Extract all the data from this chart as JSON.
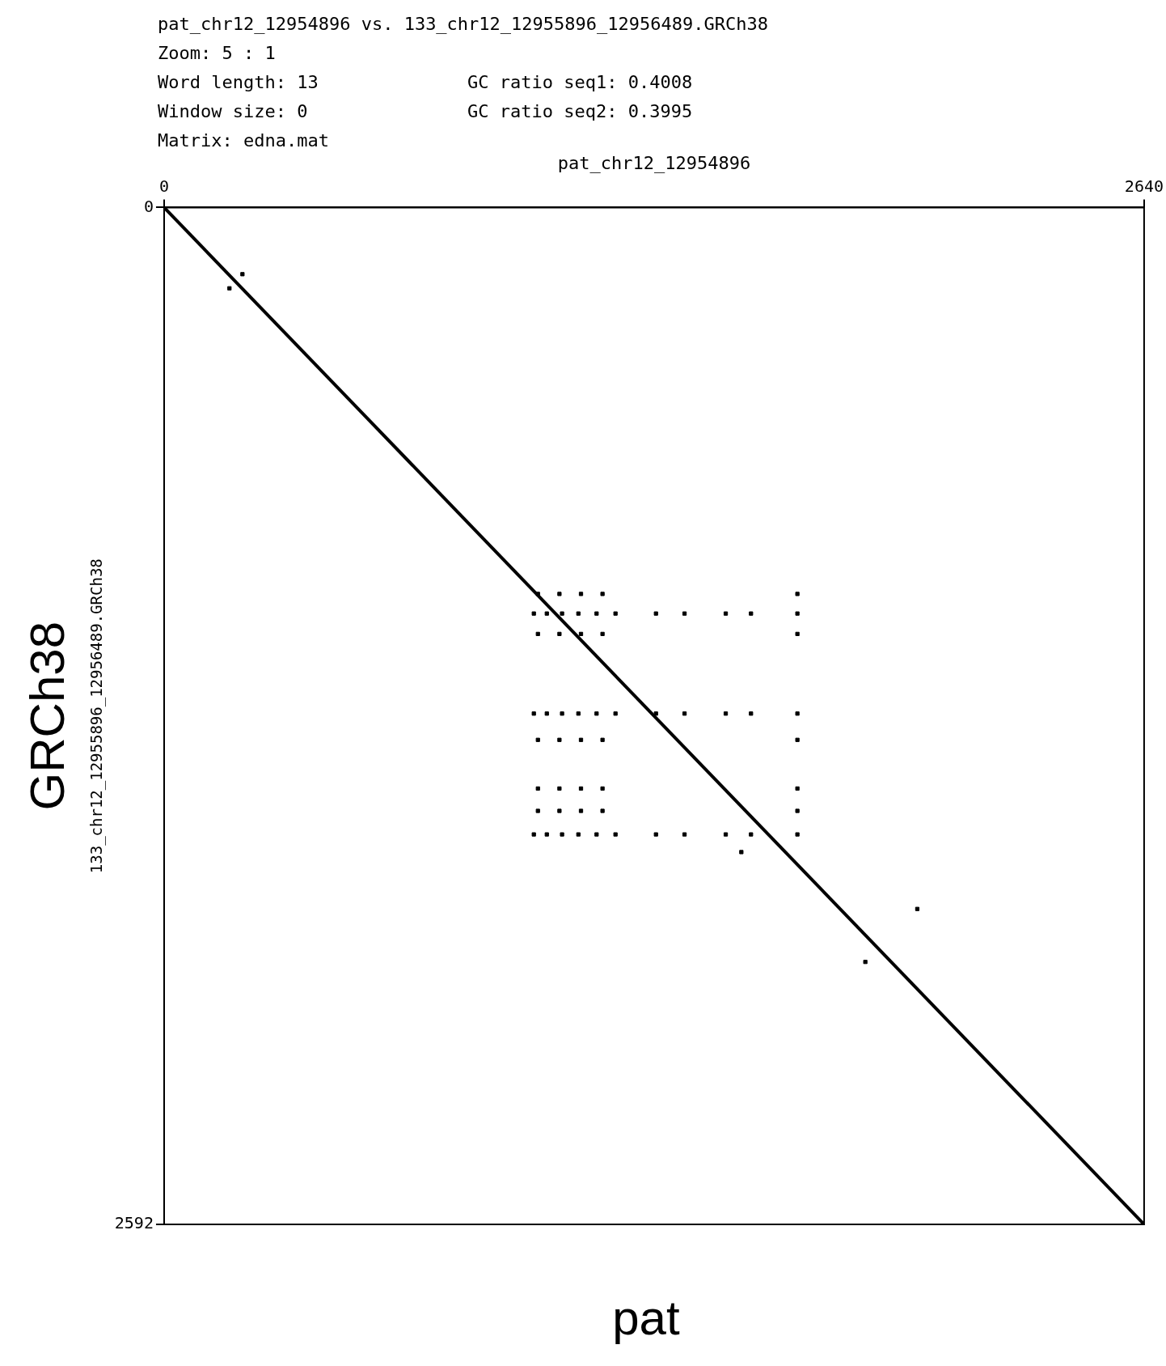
{
  "chart_data": {
    "type": "scatter",
    "title": "pat_chr12_12954896 vs. 133_chr12_12955896_12956489.GRCh38",
    "xlabel": "pat_chr12_12954896",
    "ylabel": "133_chr12_12955896_12956489.GRCh38",
    "annotations": [
      "Zoom: 5 : 1",
      "Word length: 13",
      "GC ratio seq1: 0.4008",
      "Window size: 0",
      "GC ratio seq2: 0.3995",
      "Matrix: edna.mat",
      "GRCh38",
      "pat"
    ],
    "xlim": [
      0,
      2640
    ],
    "xticks": [
      0,
      2640
    ],
    "ylim": [
      2592,
      0
    ],
    "yticks": [
      0,
      2592
    ],
    "grid": false,
    "legend": false,
    "series": [
      {
        "type": "line",
        "color": "#000000",
        "marker": "none",
        "x": [
          0,
          2640
        ],
        "values": [
          0,
          2592
        ]
      },
      {
        "color": "#000000",
        "marker": "square",
        "x": [
          211,
          176,
          2029,
          1889,
          1555,
          996,
          1031,
          1072,
          1116,
          1165,
          1216,
          1325,
          1402,
          1513,
          1581,
          1706,
          996,
          1031,
          1072,
          1116,
          1165,
          1216,
          1325,
          1402,
          1513,
          1581,
          1706,
          996,
          1031,
          1072,
          1116,
          1165,
          1216,
          1325,
          1402,
          1513,
          1581,
          1706,
          1007,
          1065,
          1123,
          1181,
          1706,
          1007,
          1065,
          1123,
          1181,
          1706,
          1007,
          1065,
          1123,
          1181,
          1706,
          1007,
          1065,
          1123,
          1181,
          1706,
          1007,
          1065,
          1123,
          1181,
          1706
        ],
        "values": [
          170,
          206,
          1788,
          1923,
          1643,
          1035,
          1035,
          1035,
          1035,
          1035,
          1035,
          1035,
          1035,
          1035,
          1035,
          1035,
          1290,
          1290,
          1290,
          1290,
          1290,
          1290,
          1290,
          1290,
          1290,
          1290,
          1290,
          1598,
          1598,
          1598,
          1598,
          1598,
          1598,
          1598,
          1598,
          1598,
          1598,
          1598,
          985,
          985,
          985,
          985,
          985,
          1087,
          1087,
          1087,
          1087,
          1087,
          1357,
          1357,
          1357,
          1357,
          1357,
          1481,
          1481,
          1481,
          1481,
          1481,
          1538,
          1538,
          1538,
          1538,
          1538
        ]
      }
    ]
  }
}
